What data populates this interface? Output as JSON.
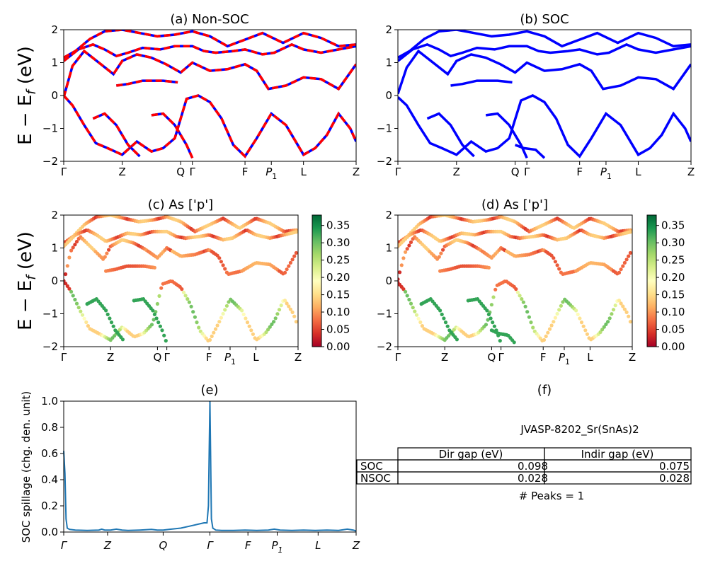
{
  "colors": {
    "nsoc": "#ff0000",
    "soc": "#0000ff",
    "spillage": "#1f77b4"
  },
  "kpath_labels": [
    "Γ",
    "Z",
    "Q",
    "Γ",
    "F",
    "P1",
    "L",
    "Z"
  ],
  "band_ylabel": "E − E_f (eV)",
  "panels": {
    "a": {
      "title": "(a) Non-SOC"
    },
    "b": {
      "title": "(b) SOC"
    },
    "c": {
      "title": "(c)  As ['p']"
    },
    "d": {
      "title": "(d) As ['p']"
    },
    "e": {
      "title": "(e)",
      "ylabel": "SOC spillage (chg. den. unit)"
    },
    "f": {
      "title": "(f)"
    }
  },
  "colorbar_ticks": [
    "0.35",
    "0.30",
    "0.25",
    "0.20",
    "0.15",
    "0.10",
    "0.05",
    "0.00"
  ],
  "gap_table": {
    "material": "JVASP-8202_Sr(SnAs)2",
    "col_headers": [
      "Dir gap (eV)",
      "Indir gap (eV)"
    ],
    "rows": [
      {
        "label": "SOC",
        "dir": "0.098",
        "indir": "0.075"
      },
      {
        "label": "NSOC",
        "dir": "0.028",
        "indir": "0.028"
      }
    ],
    "peaks": "# Peaks = 1"
  },
  "chart_data": [
    {
      "type": "line",
      "title": "(a) Non-SOC",
      "ylabel": "E − E_f (eV)",
      "ylim": [
        -2,
        2
      ],
      "yticks": [
        -2,
        -1,
        0,
        1,
        2
      ],
      "x_ticks": [
        "Γ",
        "Z",
        "Q",
        "Γ",
        "F",
        "P1",
        "L",
        "Z"
      ],
      "x_tick_positions": [
        0.0,
        0.2,
        0.4,
        0.44,
        0.62,
        0.71,
        0.82,
        1.0
      ],
      "series_note": "NSOC bands (red, dashed) drawn over SOC bands (blue)",
      "bands": [
        [
          [
            0,
            1.15
          ],
          [
            0.04,
            1.35
          ],
          [
            0.09,
            1.72
          ],
          [
            0.14,
            1.95
          ],
          [
            0.2,
            2.0
          ],
          [
            0.26,
            1.9
          ],
          [
            0.32,
            1.8
          ],
          [
            0.38,
            1.85
          ],
          [
            0.44,
            1.95
          ],
          [
            0.5,
            1.8
          ],
          [
            0.56,
            1.5
          ],
          [
            0.62,
            1.7
          ],
          [
            0.68,
            1.9
          ],
          [
            0.75,
            1.6
          ],
          [
            0.82,
            1.9
          ],
          [
            0.88,
            1.75
          ],
          [
            0.94,
            1.5
          ],
          [
            1.0,
            1.55
          ]
        ],
        [
          [
            0,
            1.05
          ],
          [
            0.05,
            1.4
          ],
          [
            0.1,
            1.55
          ],
          [
            0.14,
            1.4
          ],
          [
            0.18,
            1.2
          ],
          [
            0.22,
            1.3
          ],
          [
            0.27,
            1.45
          ],
          [
            0.33,
            1.4
          ],
          [
            0.38,
            1.5
          ],
          [
            0.44,
            1.5
          ],
          [
            0.48,
            1.35
          ],
          [
            0.52,
            1.3
          ],
          [
            0.58,
            1.35
          ],
          [
            0.62,
            1.4
          ],
          [
            0.68,
            1.25
          ],
          [
            0.72,
            1.3
          ],
          [
            0.78,
            1.55
          ],
          [
            0.82,
            1.4
          ],
          [
            0.88,
            1.3
          ],
          [
            0.94,
            1.4
          ],
          [
            1.0,
            1.5
          ]
        ],
        [
          [
            0,
            -0.05
          ],
          [
            0.03,
            0.9
          ],
          [
            0.07,
            1.35
          ],
          [
            0.12,
            1.0
          ],
          [
            0.17,
            0.65
          ],
          [
            0.2,
            1.05
          ],
          [
            0.25,
            1.25
          ],
          [
            0.3,
            1.15
          ],
          [
            0.35,
            0.95
          ],
          [
            0.4,
            0.7
          ],
          [
            0.44,
            1.0
          ],
          [
            0.5,
            0.75
          ],
          [
            0.56,
            0.8
          ],
          [
            0.62,
            0.95
          ],
          [
            0.66,
            0.75
          ],
          [
            0.7,
            0.2
          ],
          [
            0.76,
            0.3
          ],
          [
            0.82,
            0.55
          ],
          [
            0.88,
            0.5
          ],
          [
            0.94,
            0.2
          ],
          [
            1.0,
            0.95
          ]
        ],
        [
          [
            0,
            0.0
          ],
          [
            0.03,
            -0.3
          ],
          [
            0.07,
            -0.9
          ],
          [
            0.11,
            -1.45
          ],
          [
            0.15,
            -1.6
          ],
          [
            0.2,
            -1.8
          ],
          [
            0.25,
            -1.4
          ],
          [
            0.3,
            -1.7
          ],
          [
            0.34,
            -1.6
          ],
          [
            0.38,
            -1.3
          ],
          [
            0.42,
            -0.1
          ],
          [
            0.46,
            0.0
          ],
          [
            0.5,
            -0.2
          ],
          [
            0.54,
            -0.7
          ],
          [
            0.58,
            -1.5
          ],
          [
            0.62,
            -1.85
          ],
          [
            0.66,
            -1.3
          ],
          [
            0.71,
            -0.55
          ],
          [
            0.76,
            -0.9
          ],
          [
            0.82,
            -1.8
          ],
          [
            0.86,
            -1.6
          ],
          [
            0.9,
            -1.2
          ],
          [
            0.94,
            -0.55
          ],
          [
            0.98,
            -1.0
          ],
          [
            1.0,
            -1.4
          ]
        ],
        [
          [
            0.18,
            0.3
          ],
          [
            0.22,
            0.35
          ],
          [
            0.27,
            0.45
          ],
          [
            0.34,
            0.45
          ],
          [
            0.39,
            0.4
          ]
        ],
        [
          [
            0.1,
            -0.7
          ],
          [
            0.14,
            -0.55
          ],
          [
            0.18,
            -0.9
          ],
          [
            0.22,
            -1.5
          ],
          [
            0.26,
            -1.85
          ]
        ],
        [
          [
            0.3,
            -0.6
          ],
          [
            0.34,
            -0.55
          ],
          [
            0.38,
            -0.9
          ],
          [
            0.42,
            -1.5
          ],
          [
            0.44,
            -1.9
          ]
        ]
      ]
    },
    {
      "type": "line",
      "title": "(b) SOC",
      "ylim": [
        -2,
        2
      ],
      "yticks": [
        -2,
        -1,
        0,
        1,
        2
      ],
      "x_ticks": [
        "Γ",
        "Z",
        "Q",
        "Γ",
        "F",
        "P1",
        "L",
        "Z"
      ],
      "x_tick_positions": [
        0.0,
        0.2,
        0.4,
        0.44,
        0.62,
        0.71,
        0.82,
        1.0
      ],
      "series_note": "SOC bands (blue)",
      "bands": [
        [
          [
            0,
            1.15
          ],
          [
            0.04,
            1.35
          ],
          [
            0.09,
            1.72
          ],
          [
            0.14,
            1.95
          ],
          [
            0.2,
            2.0
          ],
          [
            0.26,
            1.9
          ],
          [
            0.32,
            1.8
          ],
          [
            0.38,
            1.85
          ],
          [
            0.44,
            1.95
          ],
          [
            0.5,
            1.8
          ],
          [
            0.56,
            1.5
          ],
          [
            0.62,
            1.7
          ],
          [
            0.68,
            1.9
          ],
          [
            0.75,
            1.6
          ],
          [
            0.82,
            1.9
          ],
          [
            0.88,
            1.75
          ],
          [
            0.94,
            1.5
          ],
          [
            1.0,
            1.55
          ]
        ],
        [
          [
            0,
            1.05
          ],
          [
            0.05,
            1.4
          ],
          [
            0.1,
            1.55
          ],
          [
            0.14,
            1.4
          ],
          [
            0.18,
            1.2
          ],
          [
            0.22,
            1.3
          ],
          [
            0.27,
            1.45
          ],
          [
            0.33,
            1.4
          ],
          [
            0.38,
            1.5
          ],
          [
            0.44,
            1.5
          ],
          [
            0.48,
            1.35
          ],
          [
            0.52,
            1.3
          ],
          [
            0.58,
            1.35
          ],
          [
            0.62,
            1.4
          ],
          [
            0.68,
            1.25
          ],
          [
            0.72,
            1.3
          ],
          [
            0.78,
            1.55
          ],
          [
            0.82,
            1.4
          ],
          [
            0.88,
            1.3
          ],
          [
            0.94,
            1.4
          ],
          [
            1.0,
            1.5
          ]
        ],
        [
          [
            0,
            0.05
          ],
          [
            0.03,
            0.85
          ],
          [
            0.07,
            1.35
          ],
          [
            0.12,
            1.0
          ],
          [
            0.17,
            0.65
          ],
          [
            0.2,
            1.05
          ],
          [
            0.25,
            1.25
          ],
          [
            0.3,
            1.15
          ],
          [
            0.35,
            0.95
          ],
          [
            0.4,
            0.7
          ],
          [
            0.44,
            1.0
          ],
          [
            0.5,
            0.75
          ],
          [
            0.56,
            0.8
          ],
          [
            0.62,
            0.95
          ],
          [
            0.66,
            0.75
          ],
          [
            0.7,
            0.2
          ],
          [
            0.76,
            0.3
          ],
          [
            0.82,
            0.55
          ],
          [
            0.88,
            0.5
          ],
          [
            0.94,
            0.2
          ],
          [
            1.0,
            0.95
          ]
        ],
        [
          [
            0,
            -0.05
          ],
          [
            0.03,
            -0.3
          ],
          [
            0.07,
            -0.9
          ],
          [
            0.11,
            -1.45
          ],
          [
            0.15,
            -1.6
          ],
          [
            0.2,
            -1.8
          ],
          [
            0.25,
            -1.4
          ],
          [
            0.3,
            -1.7
          ],
          [
            0.34,
            -1.6
          ],
          [
            0.38,
            -1.3
          ],
          [
            0.42,
            -0.15
          ],
          [
            0.46,
            0.0
          ],
          [
            0.5,
            -0.2
          ],
          [
            0.54,
            -0.7
          ],
          [
            0.58,
            -1.5
          ],
          [
            0.62,
            -1.85
          ],
          [
            0.66,
            -1.3
          ],
          [
            0.71,
            -0.55
          ],
          [
            0.76,
            -0.9
          ],
          [
            0.82,
            -1.8
          ],
          [
            0.86,
            -1.6
          ],
          [
            0.9,
            -1.2
          ],
          [
            0.94,
            -0.55
          ],
          [
            0.98,
            -1.0
          ],
          [
            1.0,
            -1.4
          ]
        ],
        [
          [
            0.18,
            0.3
          ],
          [
            0.22,
            0.35
          ],
          [
            0.27,
            0.45
          ],
          [
            0.34,
            0.45
          ],
          [
            0.39,
            0.4
          ]
        ],
        [
          [
            0.1,
            -0.7
          ],
          [
            0.14,
            -0.55
          ],
          [
            0.18,
            -0.9
          ],
          [
            0.22,
            -1.5
          ],
          [
            0.26,
            -1.85
          ]
        ],
        [
          [
            0.3,
            -0.6
          ],
          [
            0.34,
            -0.55
          ],
          [
            0.38,
            -0.9
          ],
          [
            0.42,
            -1.5
          ],
          [
            0.44,
            -1.9
          ]
        ],
        [
          [
            0.4,
            -1.5
          ],
          [
            0.43,
            -1.6
          ],
          [
            0.47,
            -1.65
          ],
          [
            0.5,
            -1.9
          ]
        ]
      ]
    },
    {
      "type": "scatter",
      "title": "(c)  As ['p']",
      "ylim": [
        -2,
        2
      ],
      "yticks": [
        -2,
        -1,
        0,
        1,
        2
      ],
      "colorbar": {
        "range": [
          0.0,
          0.38
        ],
        "colormap": "RdYlGn"
      },
      "x_ticks": [
        "Γ",
        "Z",
        "Q",
        "Γ",
        "F",
        "P1",
        "L",
        "Z"
      ],
      "x_tick_positions": [
        0.0,
        0.2,
        0.4,
        0.44,
        0.62,
        0.71,
        0.82,
        1.0
      ],
      "series_note": "As p-projected NSOC bands, point color = weight"
    },
    {
      "type": "scatter",
      "title": "(d) As ['p']",
      "ylim": [
        -2,
        2
      ],
      "yticks": [
        -2,
        -1,
        0,
        1,
        2
      ],
      "colorbar": {
        "range": [
          0.0,
          0.38
        ],
        "colormap": "RdYlGn"
      },
      "x_ticks": [
        "Γ",
        "Z",
        "Q",
        "Γ",
        "F",
        "P1",
        "L",
        "Z"
      ],
      "x_tick_positions": [
        0.0,
        0.2,
        0.4,
        0.44,
        0.62,
        0.71,
        0.82,
        1.0
      ],
      "series_note": "As p-projected SOC bands, point color = weight"
    },
    {
      "type": "line",
      "title": "(e)",
      "ylabel": "SOC spillage (chg. den. unit)",
      "ylim": [
        0,
        1.0
      ],
      "yticks": [
        0.0,
        0.2,
        0.4,
        0.6,
        0.8,
        1.0
      ],
      "x_ticks": [
        "Γ",
        "Z",
        "Q",
        "Γ",
        "F",
        "P1",
        "L",
        "Z"
      ],
      "x_tick_positions": [
        0.0,
        0.15,
        0.34,
        0.5,
        0.63,
        0.73,
        0.87,
        1.0
      ],
      "x": [
        0,
        0.004,
        0.008,
        0.012,
        0.02,
        0.04,
        0.08,
        0.12,
        0.13,
        0.14,
        0.16,
        0.18,
        0.2,
        0.22,
        0.26,
        0.3,
        0.32,
        0.34,
        0.36,
        0.4,
        0.44,
        0.46,
        0.48,
        0.49,
        0.495,
        0.5,
        0.505,
        0.51,
        0.52,
        0.54,
        0.58,
        0.62,
        0.66,
        0.7,
        0.72,
        0.74,
        0.78,
        0.82,
        0.86,
        0.9,
        0.94,
        0.97,
        0.99,
        1.0
      ],
      "y": [
        0.62,
        0.45,
        0.1,
        0.03,
        0.02,
        0.015,
        0.012,
        0.015,
        0.022,
        0.015,
        0.015,
        0.022,
        0.015,
        0.012,
        0.015,
        0.02,
        0.015,
        0.015,
        0.02,
        0.03,
        0.05,
        0.06,
        0.07,
        0.07,
        0.2,
        1.0,
        0.1,
        0.03,
        0.015,
        0.012,
        0.012,
        0.015,
        0.012,
        0.015,
        0.022,
        0.015,
        0.012,
        0.015,
        0.012,
        0.015,
        0.012,
        0.022,
        0.015,
        0.008
      ]
    }
  ]
}
